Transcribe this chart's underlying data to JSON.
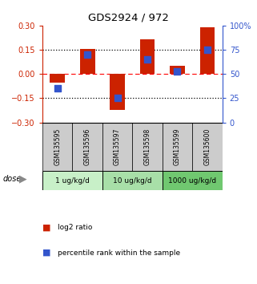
{
  "title": "GDS2924 / 972",
  "samples": [
    "GSM135595",
    "GSM135596",
    "GSM135597",
    "GSM135598",
    "GSM135599",
    "GSM135600"
  ],
  "log2_ratio": [
    -0.055,
    0.155,
    -0.22,
    0.215,
    0.05,
    0.29
  ],
  "percentile_rank": [
    35,
    70,
    25,
    65,
    53,
    75
  ],
  "dose_groups": [
    {
      "label": "1 ug/kg/d",
      "samples": [
        0,
        1
      ],
      "color": "#c8f0c8"
    },
    {
      "label": "10 ug/kg/d",
      "samples": [
        2,
        3
      ],
      "color": "#a8dfa8"
    },
    {
      "label": "1000 ug/kg/d",
      "samples": [
        4,
        5
      ],
      "color": "#70c870"
    }
  ],
  "bar_color": "#cc2200",
  "blue_color": "#3355cc",
  "left_ylim": [
    -0.3,
    0.3
  ],
  "right_ylim": [
    0,
    100
  ],
  "left_yticks": [
    -0.3,
    -0.15,
    0,
    0.15,
    0.3
  ],
  "right_yticks": [
    0,
    25,
    50,
    75,
    100
  ],
  "right_yticklabels": [
    "0",
    "25",
    "50",
    "75",
    "100%"
  ],
  "hline_black_dotted": [
    -0.15,
    0.15
  ],
  "hline_red_dashed": 0.0,
  "bar_width": 0.5,
  "blue_square_size": 28,
  "sample_bg_color": "#cccccc",
  "fig_bg_color": "#ffffff"
}
